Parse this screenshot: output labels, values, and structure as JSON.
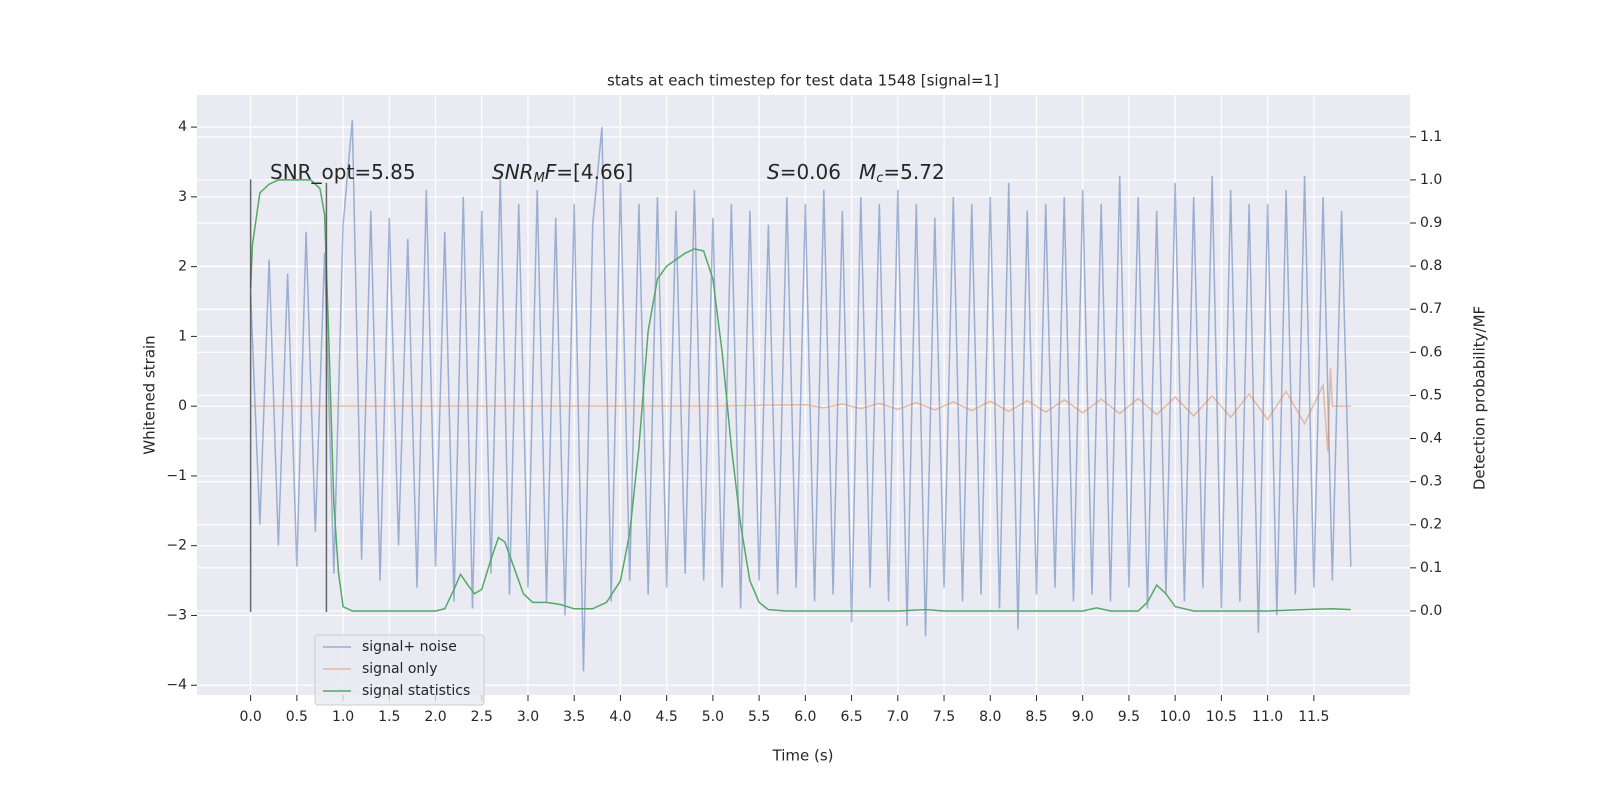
{
  "chart_data": {
    "type": "line",
    "title": "stats at each timestep for test data 1548 [signal=1]",
    "xlabel": "Time (s)",
    "ylabel": "Whitened strain",
    "y2label": "Detection probability/MF",
    "xlim": [
      -0.58,
      12.54
    ],
    "ylim": [
      -4.14,
      4.46
    ],
    "y2lim": [
      -0.195,
      1.197
    ],
    "xticks": [
      {
        "value": 0,
        "label": "0.0"
      },
      0.5,
      {
        "value": 1,
        "label": "1.0"
      },
      1.5,
      {
        "value": 2,
        "label": "2.0"
      },
      2.5,
      {
        "value": 3,
        "label": "3.0"
      },
      3.5,
      {
        "value": 4,
        "label": "4.0"
      },
      4.5,
      {
        "value": 5,
        "label": "5.0"
      },
      5.5,
      {
        "value": 6,
        "label": "6.0"
      },
      6.5,
      {
        "value": 7,
        "label": "7.0"
      },
      7.5,
      {
        "value": 8,
        "label": "8.0"
      },
      8.5,
      {
        "value": 9,
        "label": "9.0"
      },
      9.5,
      {
        "value": 10,
        "label": "10.0"
      },
      10.5,
      {
        "value": 11,
        "label": "11.0"
      },
      11.5
    ],
    "yticks": [
      {
        "value": -4,
        "label": "−4"
      },
      {
        "value": -3,
        "label": "−3"
      },
      {
        "value": -2,
        "label": "−2"
      },
      {
        "value": -1,
        "label": "−1"
      },
      0,
      1,
      2,
      3,
      4
    ],
    "y2ticks": [
      {
        "value": 0,
        "label": "0.0"
      },
      0.1,
      0.2,
      0.3,
      0.4,
      0.5,
      0.6,
      0.7,
      0.8,
      0.9,
      {
        "value": 1,
        "label": "1.0"
      },
      1.1
    ],
    "grid": true,
    "legend_loc": "lower left",
    "series": [
      {
        "name": "signal+ noise",
        "color": "#4c72b0",
        "opacity": 0.5,
        "x": [
          0,
          0.1,
          0.2,
          0.3,
          0.4,
          0.5,
          0.6,
          0.7,
          0.8,
          0.9,
          1,
          1.1,
          1.2,
          1.3,
          1.4,
          1.5,
          1.6,
          1.7,
          1.8,
          1.9,
          2,
          2.1,
          2.2,
          2.3,
          2.4,
          2.5,
          2.6,
          2.7,
          2.8,
          2.9,
          3,
          3.1,
          3.2,
          3.3,
          3.4,
          3.5,
          3.6,
          3.7,
          3.8,
          3.9,
          4,
          4.1,
          4.2,
          4.3,
          4.4,
          4.5,
          4.6,
          4.7,
          4.8,
          4.9,
          5,
          5.1,
          5.2,
          5.3,
          5.4,
          5.5,
          5.6,
          5.7,
          5.8,
          5.9,
          6,
          6.1,
          6.2,
          6.3,
          6.4,
          6.5,
          6.6,
          6.7,
          6.8,
          6.9,
          7,
          7.1,
          7.2,
          7.3,
          7.4,
          7.5,
          7.6,
          7.7,
          7.8,
          7.9,
          8,
          8.1,
          8.2,
          8.3,
          8.4,
          8.5,
          8.6,
          8.7,
          8.8,
          8.9,
          9,
          9.1,
          9.2,
          9.3,
          9.4,
          9.5,
          9.6,
          9.7,
          9.8,
          9.9,
          10,
          10.1,
          10.2,
          10.3,
          10.4,
          10.5,
          10.6,
          10.7,
          10.8,
          10.9,
          11,
          11.1,
          11.2,
          11.3,
          11.4,
          11.5,
          11.6,
          11.7,
          11.8,
          11.9
        ],
        "values": [
          1.6,
          -1.7,
          2.1,
          -2.0,
          1.9,
          -2.3,
          2.5,
          -1.8,
          2.2,
          -2.4,
          2.6,
          4.1,
          -2.2,
          2.8,
          -2.5,
          2.7,
          -2.0,
          2.4,
          -2.6,
          3.1,
          -2.3,
          2.5,
          -2.8,
          3.0,
          -2.9,
          2.8,
          -2.4,
          3.3,
          -2.7,
          2.9,
          -2.6,
          3.1,
          -2.8,
          2.7,
          -3.0,
          2.9,
          -3.8,
          2.6,
          4.0,
          -2.8,
          3.2,
          -2.5,
          2.9,
          -2.7,
          3.0,
          -2.6,
          2.8,
          -2.4,
          3.1,
          -2.5,
          2.7,
          -2.6,
          2.9,
          -2.9,
          2.8,
          -2.5,
          2.6,
          -2.7,
          3.0,
          -2.6,
          2.9,
          -2.8,
          3.1,
          -2.7,
          2.8,
          -3.1,
          3.0,
          -2.6,
          2.9,
          -2.8,
          3.1,
          -3.15,
          2.9,
          -3.3,
          2.7,
          -2.6,
          3.0,
          -2.8,
          2.9,
          -2.7,
          3.0,
          -2.9,
          3.2,
          -3.2,
          2.8,
          -2.7,
          2.9,
          -2.6,
          3.0,
          -2.8,
          3.1,
          -2.7,
          2.9,
          -2.8,
          3.3,
          -2.6,
          3.0,
          -2.9,
          2.8,
          -2.7,
          3.2,
          -2.8,
          3.0,
          -2.6,
          3.3,
          -2.9,
          3.1,
          -2.8,
          2.9,
          -3.25,
          2.9,
          -3.0,
          3.1,
          -2.7,
          3.3,
          -2.6,
          3.0,
          -2.5,
          2.8,
          -2.3
        ]
      },
      {
        "name": "signal only",
        "color": "#dd8452",
        "opacity": 0.5,
        "x": [
          0,
          5,
          6,
          6.2,
          6.4,
          6.6,
          6.8,
          7,
          7.2,
          7.4,
          7.6,
          7.8,
          8,
          8.2,
          8.4,
          8.6,
          8.8,
          9,
          9.2,
          9.4,
          9.6,
          9.8,
          10,
          10.2,
          10.4,
          10.6,
          10.8,
          11,
          11.2,
          11.4,
          11.6,
          11.65,
          11.68,
          11.7,
          11.9
        ],
        "values": [
          0,
          0,
          0.02,
          -0.025,
          0.03,
          -0.035,
          0.04,
          -0.045,
          0.05,
          -0.055,
          0.06,
          -0.065,
          0.07,
          -0.075,
          0.08,
          -0.085,
          0.09,
          -0.095,
          0.1,
          -0.105,
          0.11,
          -0.12,
          0.13,
          -0.14,
          0.15,
          -0.16,
          0.175,
          -0.19,
          0.21,
          -0.25,
          0.3,
          -0.65,
          0.55,
          0,
          0
        ]
      },
      {
        "name": "signal statistics",
        "color": "#55a868",
        "opacity": 1,
        "axis": "y2",
        "x": [
          0,
          0.02,
          0.1,
          0.2,
          0.3,
          0.5,
          0.65,
          0.75,
          0.8,
          0.85,
          0.9,
          0.95,
          1,
          1.1,
          1.5,
          2,
          2.1,
          2.2,
          2.27,
          2.35,
          2.42,
          2.5,
          2.6,
          2.68,
          2.75,
          2.85,
          2.95,
          3.05,
          3.2,
          3.35,
          3.5,
          3.7,
          3.85,
          4,
          4.1,
          4.2,
          4.3,
          4.4,
          4.5,
          4.6,
          4.7,
          4.8,
          4.9,
          5,
          5.1,
          5.2,
          5.3,
          5.4,
          5.5,
          5.6,
          5.8,
          7,
          7.3,
          7.5,
          9,
          9.15,
          9.3,
          9.6,
          9.7,
          9.8,
          9.9,
          10,
          10.2,
          11,
          11.5,
          11.7,
          11.9
        ],
        "values": [
          0.75,
          0.85,
          0.97,
          0.99,
          1,
          1,
          1,
          0.98,
          0.92,
          0.6,
          0.25,
          0.09,
          0.01,
          0,
          0,
          0,
          0.005,
          0.05,
          0.085,
          0.06,
          0.04,
          0.05,
          0.12,
          0.17,
          0.16,
          0.1,
          0.04,
          0.02,
          0.02,
          0.015,
          0.005,
          0.005,
          0.02,
          0.07,
          0.18,
          0.38,
          0.65,
          0.77,
          0.8,
          0.815,
          0.83,
          0.84,
          0.835,
          0.77,
          0.6,
          0.38,
          0.2,
          0.07,
          0.02,
          0.003,
          0,
          0,
          0.003,
          0,
          0,
          0.007,
          0,
          0,
          0.02,
          0.06,
          0.04,
          0.01,
          0,
          0,
          0.004,
          0.005,
          0.003
        ]
      }
    ],
    "vlines": [
      {
        "x": 0,
        "ymin": -2.95,
        "ymax": 3.25
      },
      {
        "x": 0.82,
        "ymin": -2.95,
        "ymax": 3.2
      }
    ],
    "annotations": [
      {
        "segments": [
          {
            "text": "SNR_opt=5.85"
          }
        ]
      },
      {
        "segments": [
          {
            "text": "SNR",
            "italic": true
          },
          {
            "text": "M",
            "italic": true,
            "sub": true
          },
          {
            "text": "F",
            "italic": true
          },
          {
            "text": "=[4.66]"
          }
        ]
      },
      {
        "segments": [
          {
            "text": "S",
            "italic": true
          },
          {
            "text": "=0.06"
          }
        ]
      },
      {
        "segments": [
          {
            "text": "M",
            "italic": true
          },
          {
            "text": "c",
            "italic": true,
            "sub": true
          },
          {
            "text": "=5.72"
          }
        ]
      }
    ]
  }
}
